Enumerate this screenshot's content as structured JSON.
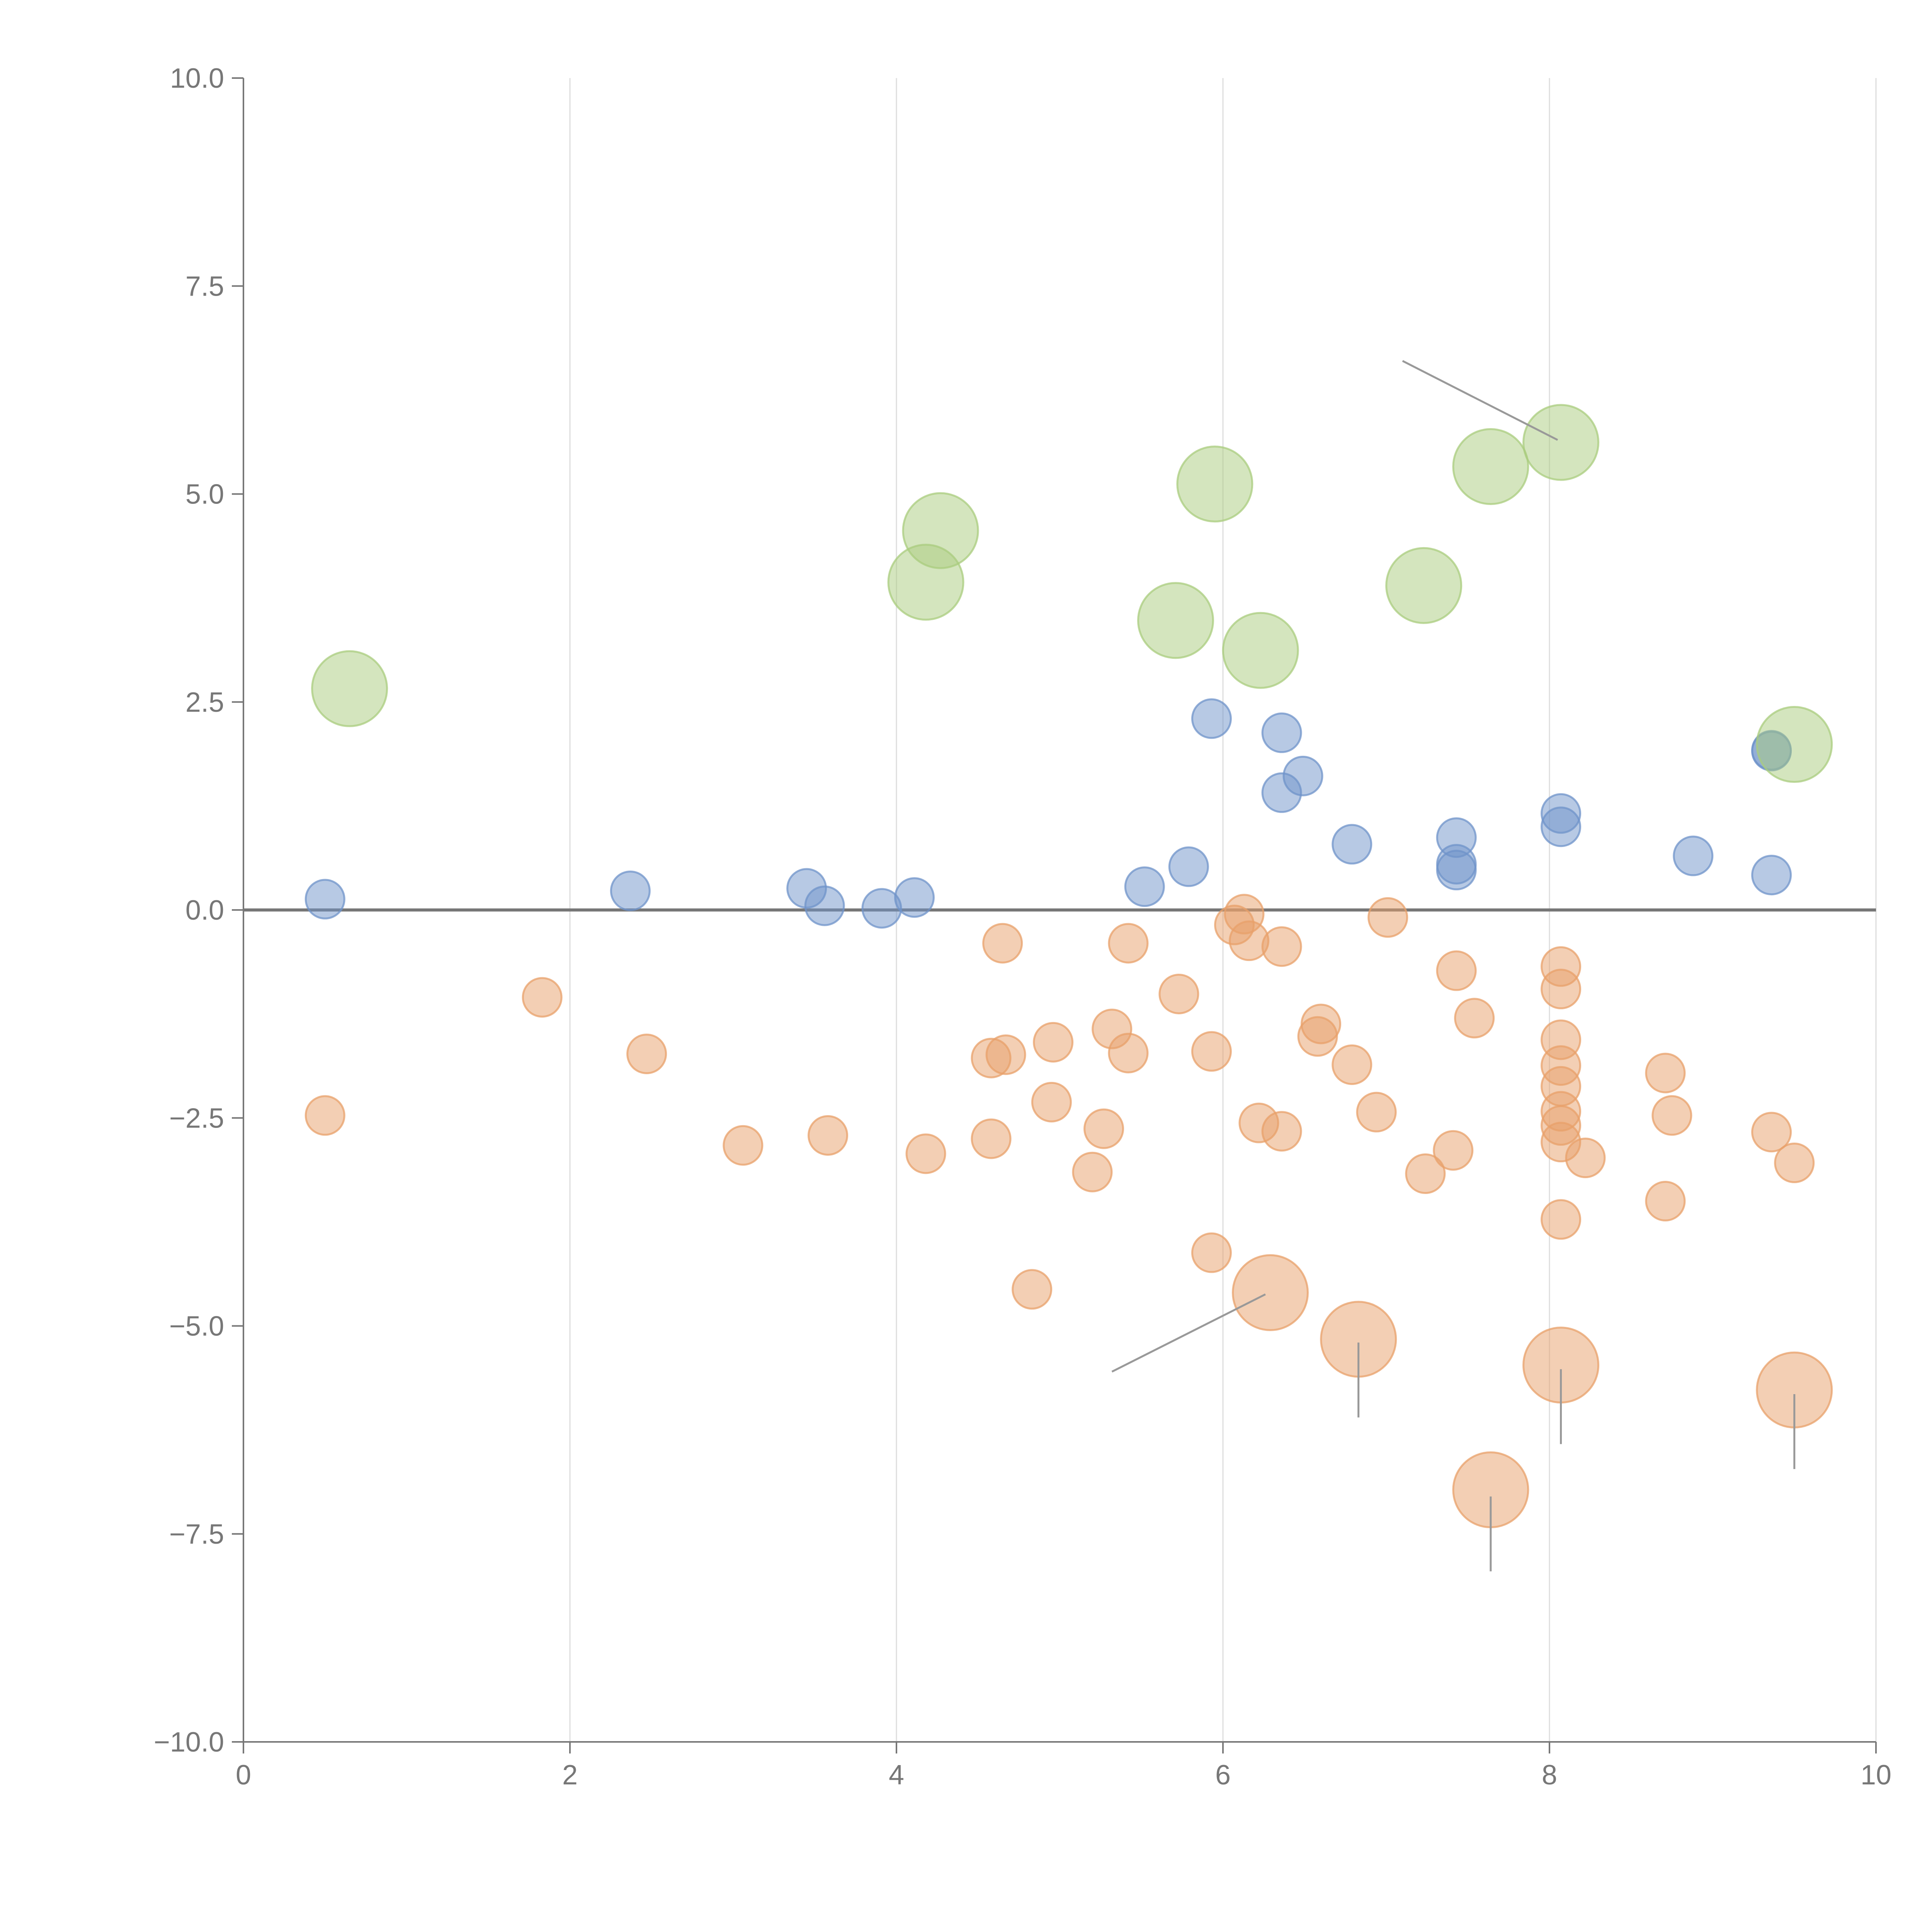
{
  "chart_data": {
    "type": "scatter",
    "title": "",
    "xlabel": "",
    "ylabel": "",
    "xlim": [
      0,
      10
    ],
    "ylim": [
      -10,
      10
    ],
    "x_ticks": [
      0,
      2,
      4,
      6,
      8,
      10
    ],
    "x_tick_labels": [
      "0",
      "2",
      "4",
      "6",
      "8",
      "10"
    ],
    "y_ticks": [
      10,
      7.5,
      5,
      2.5,
      0,
      -2.5,
      -5,
      -7.5,
      -10
    ],
    "y_tick_labels": [
      "10.0",
      "7.5",
      "5.0",
      "2.5",
      "0.0",
      "−2.5",
      "−5.0",
      "−7.5",
      "−10.0"
    ],
    "vertical_grid": true,
    "zero_line": true,
    "series": [
      {
        "name": "blue",
        "color": "#6f93c9",
        "size": "small",
        "points": [
          [
            0.5,
            0.13
          ],
          [
            2.37,
            0.23
          ],
          [
            3.45,
            0.26
          ],
          [
            3.56,
            0.05
          ],
          [
            3.91,
            0.02
          ],
          [
            4.11,
            0.15
          ],
          [
            5.52,
            0.28
          ],
          [
            5.79,
            0.52
          ],
          [
            5.93,
            2.3
          ],
          [
            6.36,
            2.13
          ],
          [
            6.36,
            1.41
          ],
          [
            6.49,
            1.61
          ],
          [
            6.79,
            0.79
          ],
          [
            7.43,
            0.87
          ],
          [
            7.43,
            0.55
          ],
          [
            7.43,
            0.48
          ],
          [
            8.07,
            1.16
          ],
          [
            8.07,
            1.0
          ],
          [
            8.88,
            0.65
          ],
          [
            9.36,
            0.42
          ],
          [
            9.36,
            1.91
          ],
          [
            9.36,
            1.92
          ]
        ]
      },
      {
        "name": "orange",
        "color": "#e8a06a",
        "size": "small",
        "points": [
          [
            0.5,
            -2.47
          ],
          [
            1.83,
            -1.05
          ],
          [
            2.47,
            -1.73
          ],
          [
            3.06,
            -2.83
          ],
          [
            3.58,
            -2.71
          ],
          [
            4.18,
            -2.93
          ],
          [
            4.58,
            -2.75
          ],
          [
            4.58,
            -1.78
          ],
          [
            4.65,
            -0.4
          ],
          [
            4.67,
            -1.74
          ],
          [
            4.83,
            -4.56
          ],
          [
            4.95,
            -2.31
          ],
          [
            4.96,
            -1.59
          ],
          [
            5.2,
            -3.15
          ],
          [
            5.27,
            -2.63
          ],
          [
            5.32,
            -1.43
          ],
          [
            5.42,
            -0.4
          ],
          [
            5.42,
            -1.72
          ],
          [
            5.73,
            -1.01
          ],
          [
            5.93,
            -4.12
          ],
          [
            5.93,
            -1.7
          ],
          [
            6.07,
            -0.18
          ],
          [
            6.13,
            -0.05
          ],
          [
            6.16,
            -0.37
          ],
          [
            6.22,
            -2.56
          ],
          [
            6.36,
            -2.66
          ],
          [
            6.36,
            -0.44
          ],
          [
            6.58,
            -1.52
          ],
          [
            6.6,
            -1.37
          ],
          [
            6.79,
            -1.86
          ],
          [
            6.94,
            -2.43
          ],
          [
            7.01,
            -0.09
          ],
          [
            7.24,
            -3.17
          ],
          [
            7.41,
            -2.89
          ],
          [
            7.43,
            -0.73
          ],
          [
            7.54,
            -1.3
          ],
          [
            8.07,
            -0.68
          ],
          [
            8.07,
            -0.95
          ],
          [
            8.07,
            -1.56
          ],
          [
            8.07,
            -1.87
          ],
          [
            8.07,
            -2.12
          ],
          [
            8.07,
            -2.42
          ],
          [
            8.07,
            -2.59
          ],
          [
            8.07,
            -2.79
          ],
          [
            8.07,
            -3.72
          ],
          [
            8.22,
            -2.98
          ],
          [
            8.71,
            -1.96
          ],
          [
            8.71,
            -3.5
          ],
          [
            8.75,
            -2.47
          ],
          [
            9.36,
            -2.67
          ],
          [
            9.5,
            -3.04
          ]
        ]
      },
      {
        "name": "green",
        "color": "#a9cc7e",
        "size": "large",
        "points": [
          [
            0.65,
            2.66
          ],
          [
            4.18,
            3.94
          ],
          [
            4.27,
            4.56
          ],
          [
            5.71,
            3.48
          ],
          [
            5.95,
            5.12
          ],
          [
            6.23,
            3.12
          ],
          [
            7.23,
            3.9
          ],
          [
            7.64,
            5.33
          ],
          [
            8.07,
            5.62
          ],
          [
            9.5,
            1.99
          ]
        ]
      },
      {
        "name": "orange-large",
        "color": "#e8a06a",
        "size": "large",
        "points": [
          [
            6.29,
            -4.6
          ],
          [
            6.83,
            -5.16
          ],
          [
            7.64,
            -6.97
          ],
          [
            8.07,
            -5.47
          ],
          [
            9.5,
            -5.77
          ]
        ]
      }
    ],
    "annotation_lines": [
      {
        "from": [
          7.1,
          6.6
        ],
        "to": [
          8.05,
          5.65
        ]
      },
      {
        "from": [
          5.32,
          -5.55
        ],
        "to": [
          6.26,
          -4.62
        ]
      },
      {
        "from": [
          6.83,
          -5.2
        ],
        "to": [
          6.83,
          -6.1
        ]
      },
      {
        "from": [
          7.64,
          -7.05
        ],
        "to": [
          7.64,
          -7.95
        ]
      },
      {
        "from": [
          8.07,
          -5.52
        ],
        "to": [
          8.07,
          -6.42
        ]
      },
      {
        "from": [
          9.5,
          -5.82
        ],
        "to": [
          9.5,
          -6.72
        ]
      }
    ]
  }
}
